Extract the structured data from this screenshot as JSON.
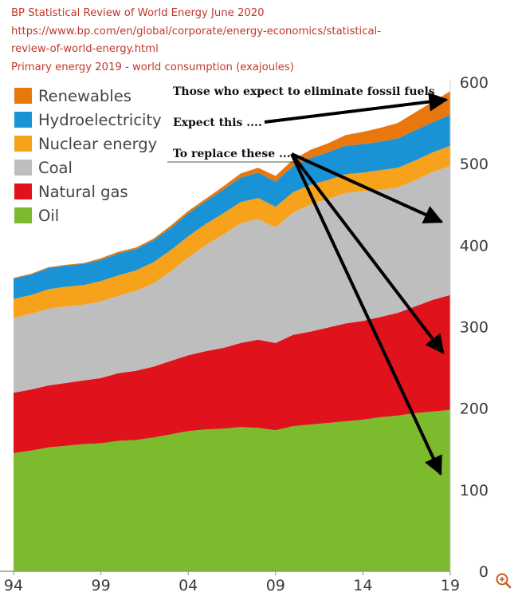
{
  "header": {
    "line1": "BP Statistical Review of World Energy June 2020",
    "line2": "https://www.bp.com/en/global/corporate/energy-economics/statistical-",
    "line3": "review-of-world-energy.html",
    "line4": "Primary energy 2019 - world consumption (exajoules)"
  },
  "annotations": {
    "eliminate": "Those who expect to eliminate fossil fuels",
    "expect": "Expect this ....",
    "replace": "To replace these ...."
  },
  "zoom_icon": "zoom-in-icon",
  "chart_data": {
    "type": "area",
    "stacked": true,
    "x": [
      1994,
      1995,
      1996,
      1997,
      1998,
      1999,
      2000,
      2001,
      2002,
      2003,
      2004,
      2005,
      2006,
      2007,
      2008,
      2009,
      2010,
      2011,
      2012,
      2013,
      2014,
      2015,
      2016,
      2017,
      2018,
      2019
    ],
    "x_tick_labels": [
      "94",
      "99",
      "04",
      "09",
      "14",
      "19"
    ],
    "x_tick_values": [
      1994,
      1999,
      2004,
      2009,
      2014,
      2019
    ],
    "y_ticks": [
      "0",
      "100",
      "200",
      "300",
      "400",
      "500",
      "600"
    ],
    "y_tick_values": [
      0,
      100,
      200,
      300,
      400,
      500,
      600
    ],
    "ylim": [
      0,
      600
    ],
    "xlim": [
      1994,
      2019
    ],
    "y_axis_side": "right",
    "grid": false,
    "legend_position": "top-left",
    "series": [
      {
        "name": "Oil",
        "color": "#7cbb2e",
        "values": [
          145,
          148,
          152,
          154,
          156,
          157,
          160,
          161,
          164,
          168,
          172,
          174,
          175,
          177,
          176,
          173,
          178,
          180,
          182,
          184,
          186,
          189,
          191,
          194,
          196,
          198
        ]
      },
      {
        "name": "Natural gas",
        "color": "#e0121c",
        "values": [
          74,
          75,
          76,
          77,
          78,
          80,
          83,
          85,
          87,
          90,
          93,
          96,
          99,
          103,
          108,
          107,
          112,
          114,
          117,
          120,
          121,
          123,
          126,
          131,
          137,
          141
        ]
      },
      {
        "name": "Coal",
        "color": "#bebebe",
        "values": [
          92,
          93,
          94,
          94,
          93,
          94,
          95,
          98,
          102,
          110,
          120,
          130,
          139,
          147,
          148,
          142,
          150,
          156,
          158,
          160,
          159,
          156,
          154,
          155,
          157,
          158
        ]
      },
      {
        "name": "Nuclear energy",
        "color": "#f7a21b",
        "values": [
          23,
          23,
          24,
          24,
          24,
          25,
          25,
          25,
          26,
          26,
          26,
          26,
          26,
          26,
          26,
          25,
          25,
          24,
          23,
          23,
          23,
          24,
          24,
          24,
          24,
          25
        ]
      },
      {
        "name": "Hydroelectricity",
        "color": "#1a93d6",
        "values": [
          25,
          25,
          26,
          26,
          26,
          26,
          27,
          26,
          27,
          27,
          28,
          28,
          29,
          30,
          31,
          31,
          32,
          33,
          34,
          35,
          35,
          35,
          36,
          37,
          37,
          38
        ]
      },
      {
        "name": "Renewables",
        "color": "#e8780d",
        "values": [
          1,
          1,
          1,
          1,
          1,
          2,
          2,
          2,
          2,
          3,
          3,
          3,
          4,
          5,
          6,
          7,
          8,
          10,
          11,
          13,
          15,
          17,
          19,
          22,
          25,
          29
        ]
      }
    ]
  }
}
